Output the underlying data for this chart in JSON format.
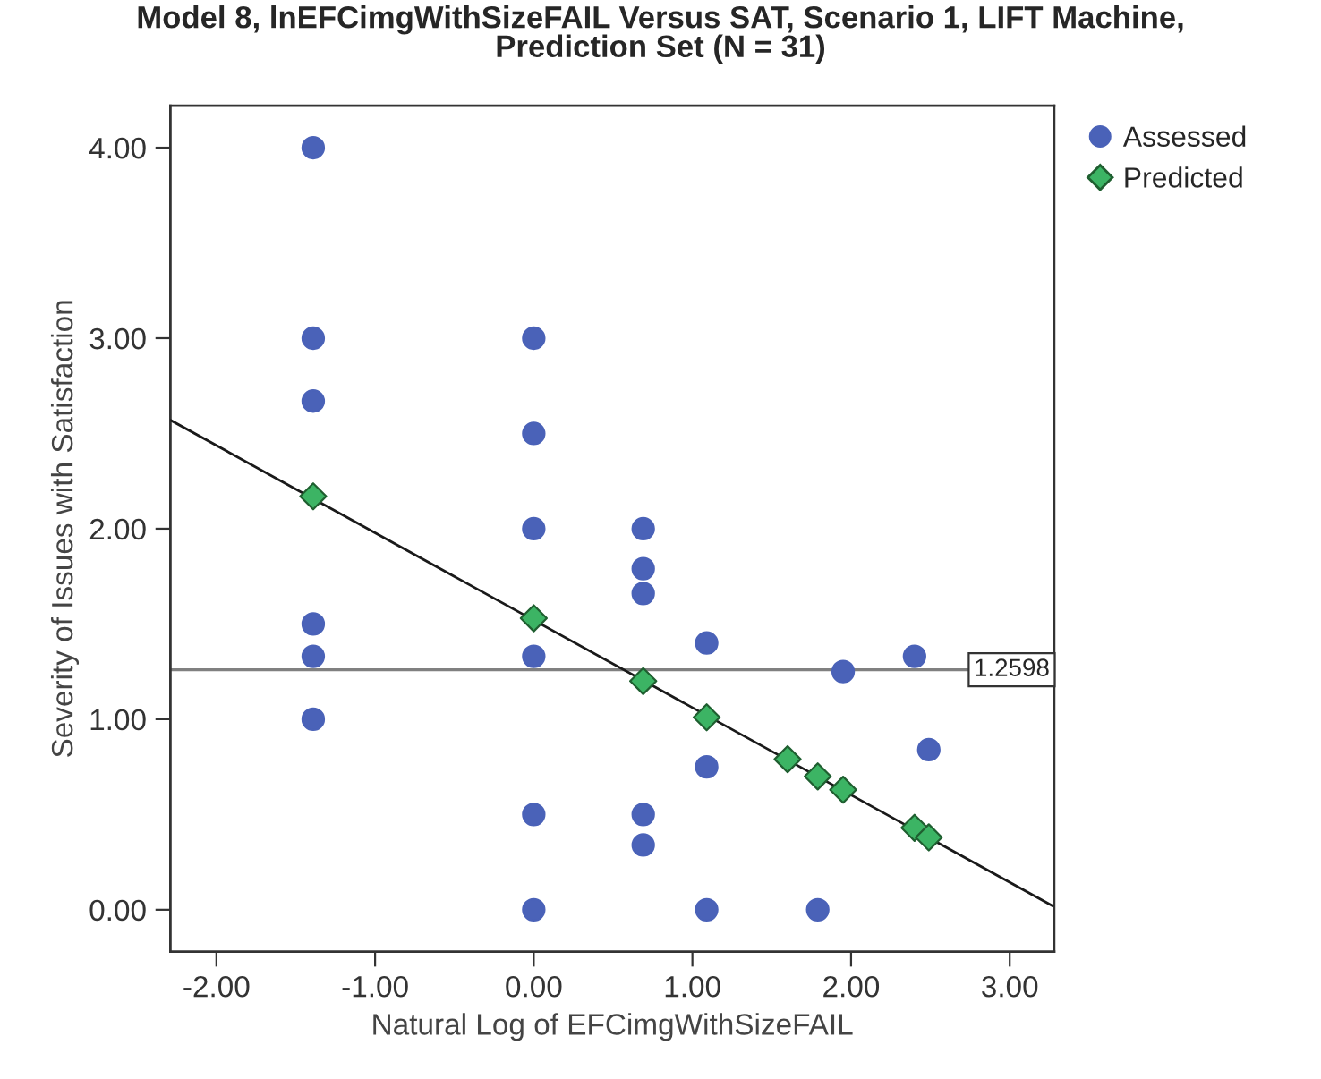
{
  "chart_data": {
    "type": "scatter",
    "title": "Model 8, lnEFCimgWithSizeFAIL Versus SAT, Scenario 1, LIFT Machine,\nPrediction Set (N = 31)",
    "xlabel": "Natural Log of EFCimgWithSizeFAIL",
    "ylabel": "Severity of Issues with Satisfaction",
    "series": [
      {
        "name": "Assessed",
        "marker": "circle",
        "color": "#4a62b8",
        "x": [
          -1.39,
          -1.39,
          -1.39,
          -1.39,
          -1.39,
          -1.39,
          0,
          0,
          0,
          0,
          0,
          0,
          0.69,
          0.69,
          0.69,
          0.69,
          0.69,
          1.09,
          1.09,
          1.09,
          1.79,
          1.95,
          2.4,
          2.49
        ],
        "values": [
          4.0,
          3.0,
          2.67,
          1.5,
          1.33,
          1.0,
          3.0,
          2.5,
          2.0,
          1.33,
          0.5,
          0.0,
          2.0,
          1.79,
          1.66,
          0.5,
          0.34,
          1.4,
          0.75,
          0.0,
          0.0,
          1.25,
          1.33,
          0.84
        ]
      },
      {
        "name": "Predicted",
        "marker": "diamond",
        "color": "#3cb464",
        "x": [
          -1.39,
          0,
          0.69,
          1.09,
          1.6,
          1.79,
          1.95,
          2.4,
          2.49
        ],
        "values": [
          2.17,
          1.53,
          1.2,
          1.01,
          0.79,
          0.7,
          0.63,
          0.43,
          0.38
        ]
      },
      {
        "type": "line",
        "color": "#1a1a1a",
        "line_style": "solid",
        "x": [
          -2.29,
          3.27
        ],
        "values": [
          2.57,
          0.02
        ]
      }
    ],
    "ref_lines": [
      {
        "axis": "y",
        "value": 1.2598,
        "label": "1.2598",
        "color": "#808080"
      }
    ],
    "xlim": [
      -2.29,
      3.28
    ],
    "ylim": [
      -0.22,
      4.22
    ],
    "xticks": [
      {
        "value": -2,
        "label": "-2.00"
      },
      {
        "value": -1,
        "label": "-1.00"
      },
      {
        "value": 0,
        "label": "0.00"
      },
      {
        "value": 1,
        "label": "1.00"
      },
      {
        "value": 2,
        "label": "2.00"
      },
      {
        "value": 3,
        "label": "3.00"
      }
    ],
    "yticks": [
      {
        "value": 0,
        "label": "0.00"
      },
      {
        "value": 1,
        "label": "1.00"
      },
      {
        "value": 2,
        "label": "2.00"
      },
      {
        "value": 3,
        "label": "3.00"
      },
      {
        "value": 4,
        "label": "4.00"
      }
    ],
    "grid": false,
    "legend": "top right"
  }
}
